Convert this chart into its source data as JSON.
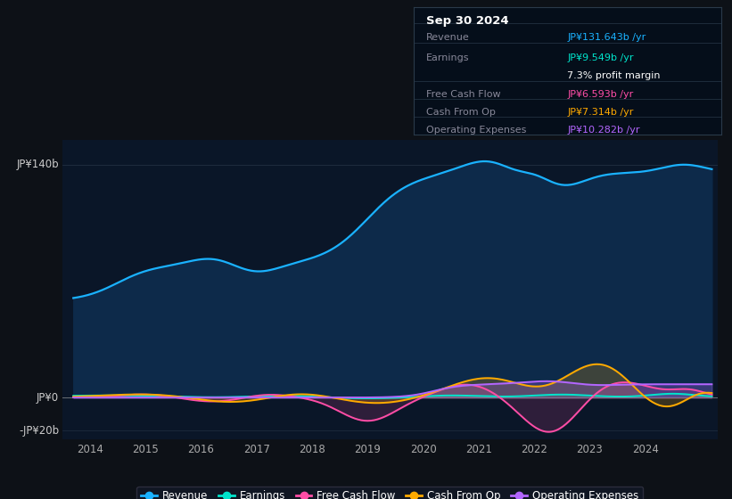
{
  "bg_color": "#0d1117",
  "plot_bg": "#0a1628",
  "title": "Sep 30 2024",
  "y_label_140": "JP¥140b",
  "y_label_0": "JP¥0",
  "y_label_neg20": "-JP¥20b",
  "ylim": [
    -25,
    155
  ],
  "xlim": [
    2013.5,
    2025.3
  ],
  "xticks": [
    2014,
    2015,
    2016,
    2017,
    2018,
    2019,
    2020,
    2021,
    2022,
    2023,
    2024
  ],
  "revenue_color": "#1ab2ff",
  "revenue_fill": "#0d2a4a",
  "earnings_color": "#00e5cc",
  "fcf_color": "#ff4da6",
  "cashfromop_color": "#ffaa00",
  "opex_color": "#b366ff",
  "info_rows": [
    {
      "label": "Revenue",
      "value": "JP¥131.643b /yr",
      "value_color": "#1ab2ff"
    },
    {
      "label": "Earnings",
      "value": "JP¥9.549b /yr",
      "value_color": "#00e5cc"
    },
    {
      "label": "",
      "value": "7.3% profit margin",
      "value_color": "#ffffff"
    },
    {
      "label": "Free Cash Flow",
      "value": "JP¥6.593b /yr",
      "value_color": "#ff4da6"
    },
    {
      "label": "Cash From Op",
      "value": "JP¥7.314b /yr",
      "value_color": "#ffaa00"
    },
    {
      "label": "Operating Expenses",
      "value": "JP¥10.282b /yr",
      "value_color": "#b366ff"
    }
  ],
  "legend_items": [
    {
      "label": "Revenue",
      "color": "#1ab2ff"
    },
    {
      "label": "Earnings",
      "color": "#00e5cc"
    },
    {
      "label": "Free Cash Flow",
      "color": "#ff4da6"
    },
    {
      "label": "Cash From Op",
      "color": "#ffaa00"
    },
    {
      "label": "Operating Expenses",
      "color": "#b366ff"
    }
  ]
}
